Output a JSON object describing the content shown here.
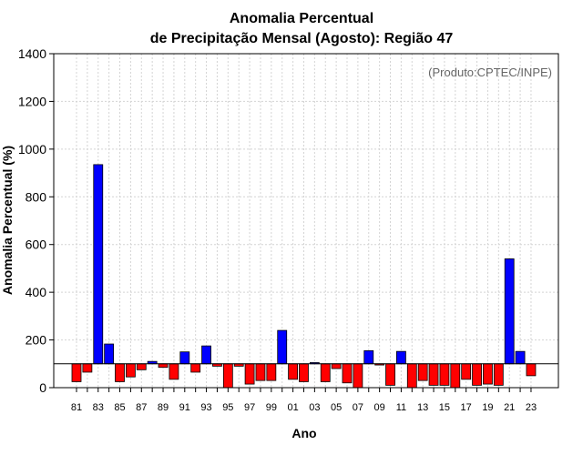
{
  "chart_data": {
    "type": "bar",
    "title": [
      "Anomalia Percentual",
      "de Precipitação Mensal (Agosto): Região 47"
    ],
    "xlabel": "Ano",
    "ylabel": "Anomalia Percentual (%)",
    "credit": "(Produto:CPTEC/INPE)",
    "ylim": [
      0,
      1400
    ],
    "yticks": [
      "0",
      "200",
      "400",
      "600",
      "800",
      "1000",
      "1200",
      "1400"
    ],
    "baseline": 100,
    "grid": true,
    "colors": {
      "above": "#0000ff",
      "below": "#ff0000",
      "outline": "#000000"
    },
    "categories": [
      "81",
      "82",
      "83",
      "84",
      "85",
      "86",
      "87",
      "88",
      "89",
      "90",
      "91",
      "92",
      "93",
      "94",
      "95",
      "96",
      "97",
      "98",
      "99",
      "00",
      "01",
      "02",
      "03",
      "04",
      "05",
      "06",
      "07",
      "08",
      "09",
      "10",
      "11",
      "12",
      "13",
      "14",
      "15",
      "16",
      "17",
      "18",
      "19",
      "20",
      "21",
      "22",
      "23"
    ],
    "x_tick_labels": [
      "81",
      "83",
      "85",
      "87",
      "89",
      "91",
      "93",
      "95",
      "97",
      "99",
      "01",
      "03",
      "05",
      "07",
      "09",
      "11",
      "13",
      "15",
      "17",
      "19",
      "21",
      "23"
    ],
    "values": [
      25,
      65,
      935,
      183,
      25,
      45,
      75,
      110,
      85,
      35,
      150,
      65,
      175,
      90,
      0,
      90,
      15,
      30,
      30,
      240,
      35,
      25,
      105,
      25,
      80,
      20,
      0,
      155,
      95,
      10,
      152,
      0,
      30,
      10,
      10,
      0,
      35,
      10,
      15,
      10,
      540,
      152,
      50
    ]
  }
}
